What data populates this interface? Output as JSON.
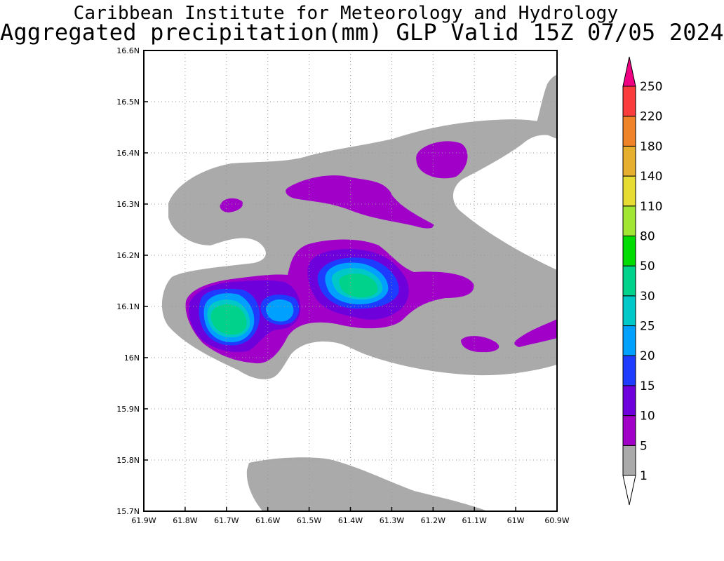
{
  "title": {
    "line1": "Caribbean Institute for Meteorology and Hydrology",
    "line2": "Aggregated precipitation(mm) GLP Valid 15Z 07/05 2024"
  },
  "map": {
    "lon_range": [
      -61.9,
      -60.9
    ],
    "lat_range": [
      15.7,
      16.6
    ],
    "lon_ticks": [
      {
        "value": -61.9,
        "label": "61.9W"
      },
      {
        "value": -61.8,
        "label": "61.8W"
      },
      {
        "value": -61.7,
        "label": "61.7W"
      },
      {
        "value": -61.6,
        "label": "61.6W"
      },
      {
        "value": -61.5,
        "label": "61.5W"
      },
      {
        "value": -61.4,
        "label": "61.4W"
      },
      {
        "value": -61.3,
        "label": "61.3W"
      },
      {
        "value": -61.2,
        "label": "61.2W"
      },
      {
        "value": -61.1,
        "label": "61.1W"
      },
      {
        "value": -61.0,
        "label": "61W"
      },
      {
        "value": -60.9,
        "label": "60.9W"
      }
    ],
    "lat_ticks": [
      {
        "value": 15.7,
        "label": "15.7N"
      },
      {
        "value": 15.8,
        "label": "15.8N"
      },
      {
        "value": 15.9,
        "label": "15.9N"
      },
      {
        "value": 16.0,
        "label": "16N"
      },
      {
        "value": 16.1,
        "label": "16.1N"
      },
      {
        "value": 16.2,
        "label": "16.2N"
      },
      {
        "value": 16.3,
        "label": "16.3N"
      },
      {
        "value": 16.4,
        "label": "16.4N"
      },
      {
        "value": 16.5,
        "label": "16.5N"
      },
      {
        "value": 16.6,
        "label": "16.6N"
      }
    ],
    "grid": "dotted"
  },
  "legend": {
    "placement": "right",
    "levels": [
      {
        "label": "1",
        "color": "#aaaaaa"
      },
      {
        "label": "5",
        "color": "#a000c8"
      },
      {
        "label": "10",
        "color": "#6e00dc"
      },
      {
        "label": "15",
        "color": "#1e3cff"
      },
      {
        "label": "20",
        "color": "#00a0ff"
      },
      {
        "label": "25",
        "color": "#00c8c8"
      },
      {
        "label": "30",
        "color": "#00d28c"
      },
      {
        "label": "50",
        "color": "#00dc00"
      },
      {
        "label": "80",
        "color": "#a0e632"
      },
      {
        "label": "110",
        "color": "#e6dc32"
      },
      {
        "label": "140",
        "color": "#e6af2d"
      },
      {
        "label": "180",
        "color": "#f08228"
      },
      {
        "label": "220",
        "color": "#fa3c3c"
      },
      {
        "label": "250",
        "color": "#f00082"
      }
    ],
    "under_color": "#ffffff",
    "over_color": "#f00082"
  },
  "chart_data": {
    "type": "heatmap",
    "variable": "Aggregated precipitation(mm)",
    "model": "GLP",
    "xlim": [
      -61.9,
      -60.9
    ],
    "ylim": [
      15.7,
      16.6
    ],
    "contour_levels_mm": [
      1,
      5,
      10,
      15,
      20,
      25,
      30,
      50,
      80,
      110,
      140,
      180,
      220,
      250
    ],
    "features": [
      {
        "lon": -61.7,
        "lat": 16.08,
        "max_level_mm": 30
      },
      {
        "lon": -61.38,
        "lat": 16.15,
        "max_level_mm": 30
      },
      {
        "lon": -61.58,
        "lat": 16.09,
        "max_level_mm": 20
      },
      {
        "lon": -61.17,
        "lat": 16.38,
        "max_level_mm": 10
      },
      {
        "lon": -61.73,
        "lat": 16.3,
        "max_level_mm": 5
      },
      {
        "lon": -61.4,
        "lat": 16.32,
        "max_level_mm": 5
      },
      {
        "lon": -61.1,
        "lat": 16.03,
        "max_level_mm": 5
      },
      {
        "lon": -60.96,
        "lat": 16.05,
        "max_level_mm": 5
      },
      {
        "lon": -61.55,
        "lat": 15.77,
        "max_level_mm": 1
      }
    ]
  }
}
